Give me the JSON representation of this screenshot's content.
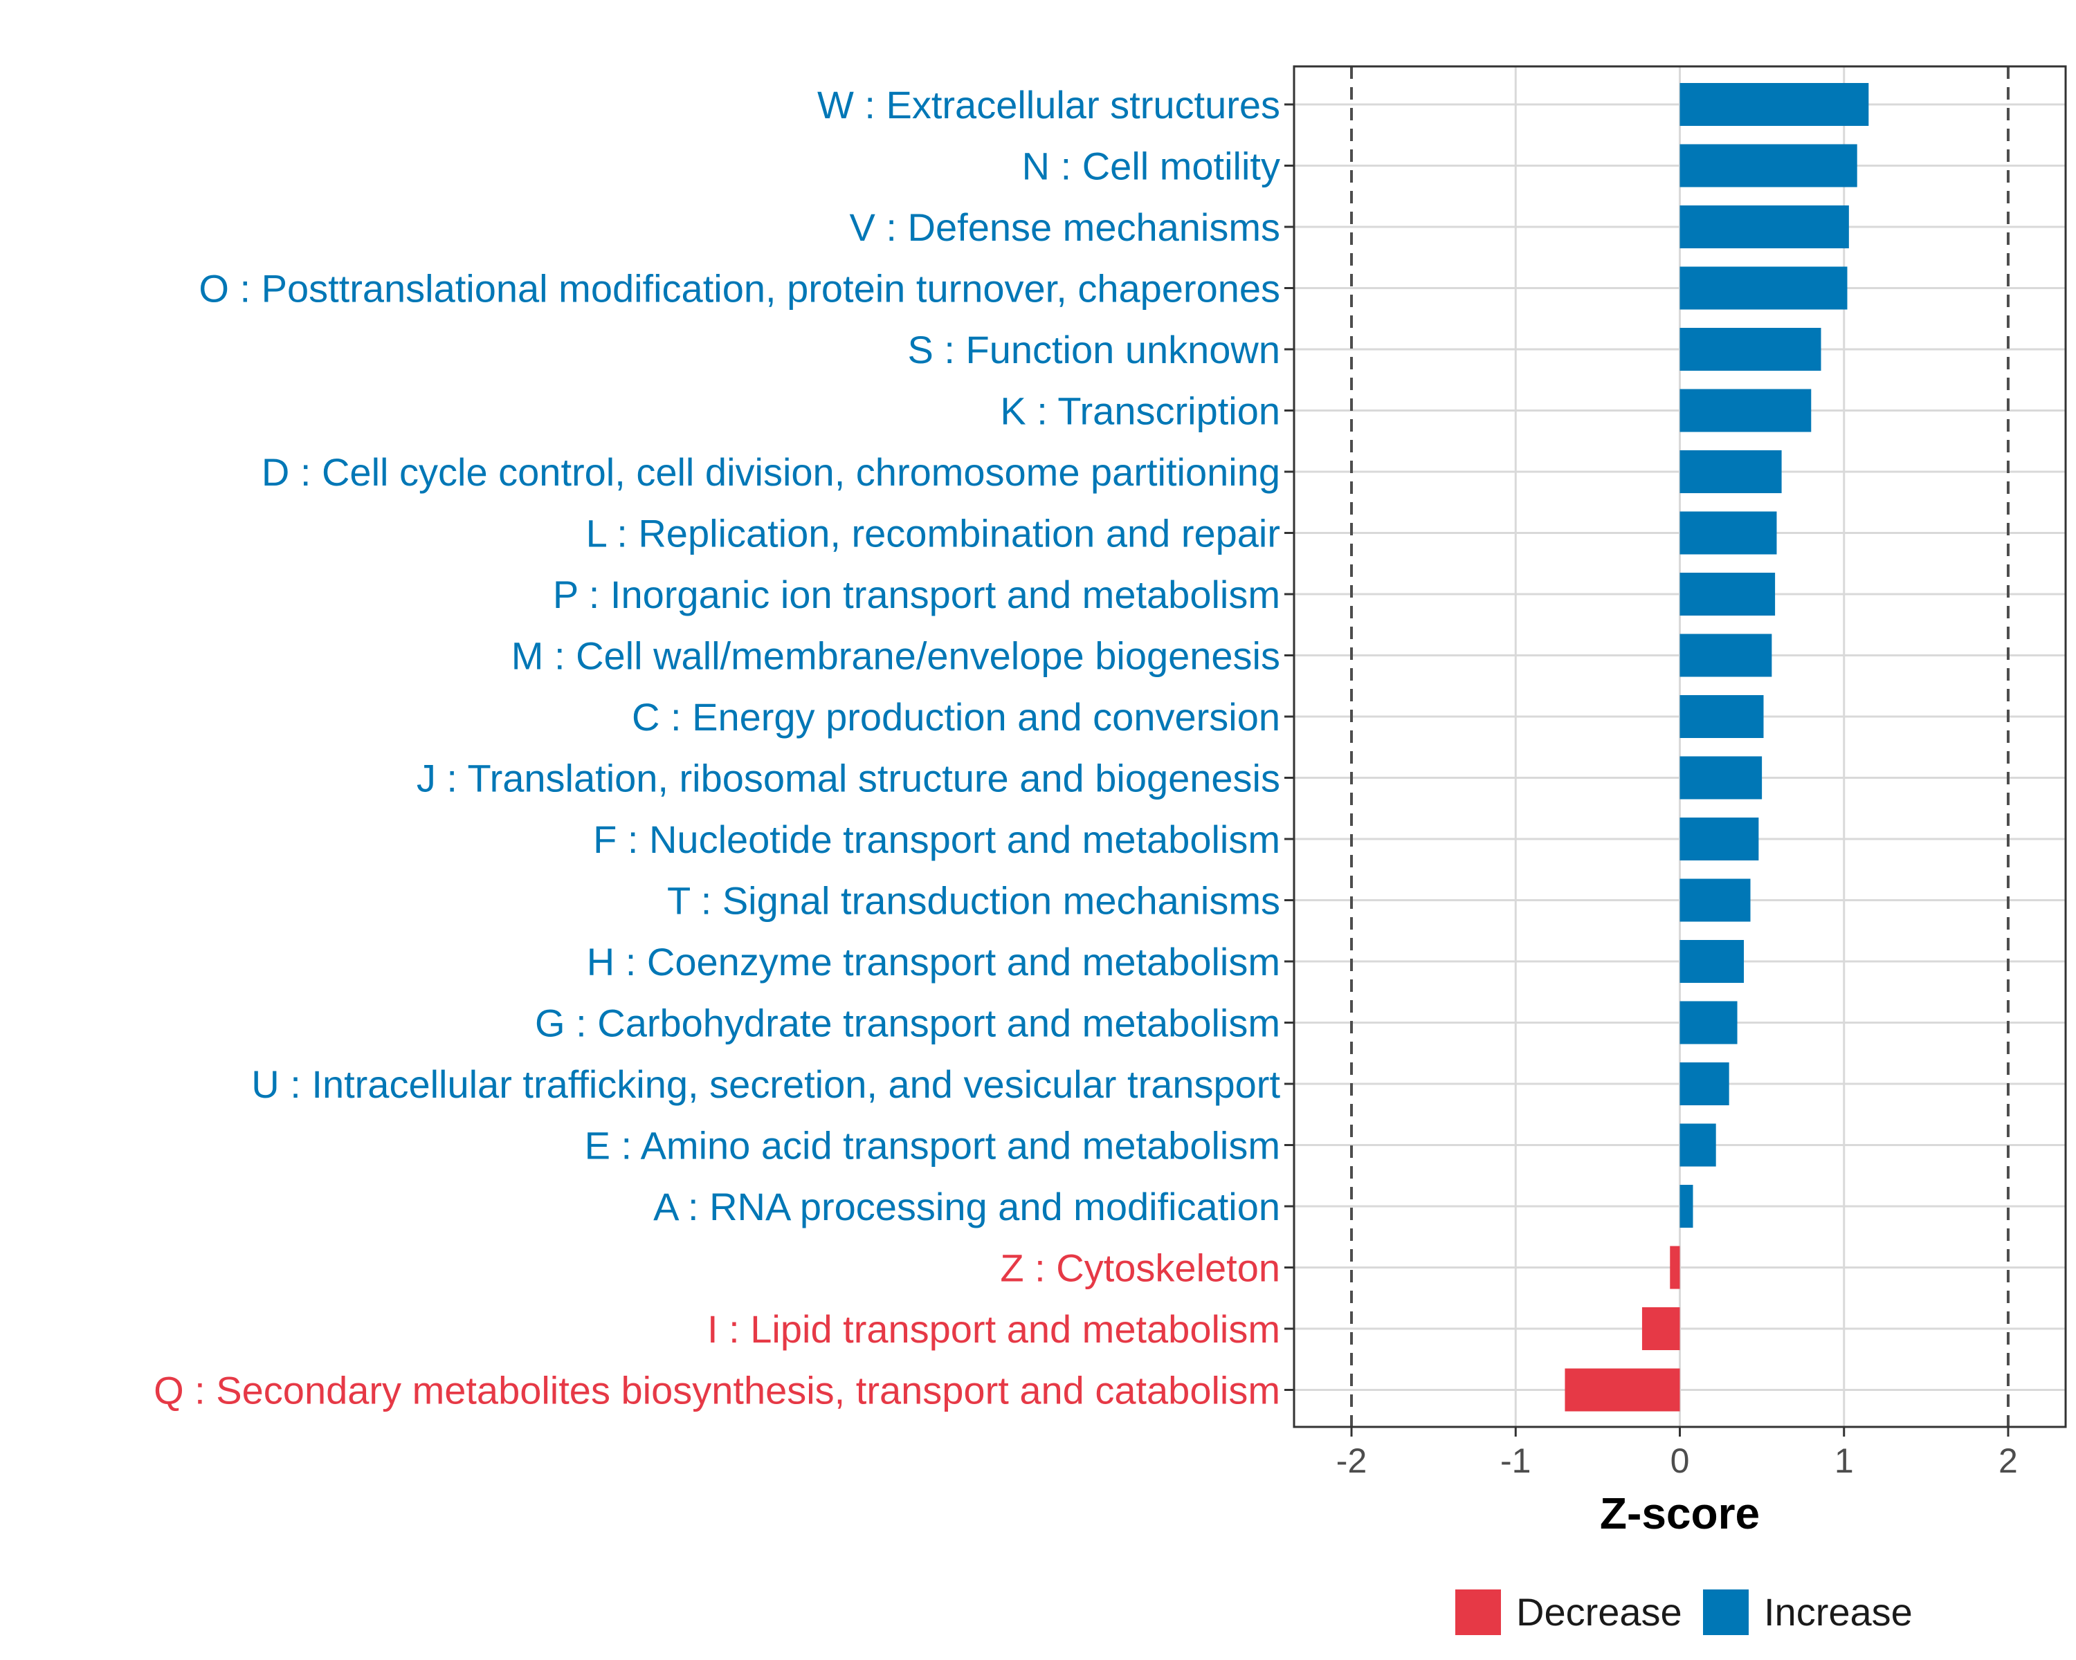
{
  "chart_data": {
    "type": "bar",
    "orientation": "horizontal",
    "xlabel": "Z-score",
    "ylabel": "",
    "xlim": [
      -2.35,
      2.35
    ],
    "x_ticks": [
      -2,
      -1,
      0,
      1,
      2
    ],
    "reference_lines": [
      -2,
      2
    ],
    "grid": true,
    "colors": {
      "Decrease": "#e63946",
      "Increase": "#0077b6"
    },
    "legend": {
      "position": "bottom",
      "entries": [
        {
          "label": "Decrease",
          "color": "#e63946"
        },
        {
          "label": "Increase",
          "color": "#0077b6"
        }
      ]
    },
    "bars": [
      {
        "label": "W : Extracellular structures",
        "value": 1.15,
        "group": "Increase"
      },
      {
        "label": "N : Cell motility",
        "value": 1.08,
        "group": "Increase"
      },
      {
        "label": "V : Defense mechanisms",
        "value": 1.03,
        "group": "Increase"
      },
      {
        "label": "O : Posttranslational modification, protein turnover, chaperones",
        "value": 1.02,
        "group": "Increase"
      },
      {
        "label": "S : Function unknown",
        "value": 0.86,
        "group": "Increase"
      },
      {
        "label": "K : Transcription",
        "value": 0.8,
        "group": "Increase"
      },
      {
        "label": "D : Cell cycle control, cell division, chromosome partitioning",
        "value": 0.62,
        "group": "Increase"
      },
      {
        "label": "L : Replication, recombination and repair",
        "value": 0.59,
        "group": "Increase"
      },
      {
        "label": "P : Inorganic ion transport and metabolism",
        "value": 0.58,
        "group": "Increase"
      },
      {
        "label": "M : Cell wall/membrane/envelope biogenesis",
        "value": 0.56,
        "group": "Increase"
      },
      {
        "label": "C : Energy production and conversion",
        "value": 0.51,
        "group": "Increase"
      },
      {
        "label": "J : Translation, ribosomal structure and biogenesis",
        "value": 0.5,
        "group": "Increase"
      },
      {
        "label": "F : Nucleotide transport and metabolism",
        "value": 0.48,
        "group": "Increase"
      },
      {
        "label": "T : Signal transduction mechanisms",
        "value": 0.43,
        "group": "Increase"
      },
      {
        "label": "H : Coenzyme transport and metabolism",
        "value": 0.39,
        "group": "Increase"
      },
      {
        "label": "G : Carbohydrate transport and metabolism",
        "value": 0.35,
        "group": "Increase"
      },
      {
        "label": "U : Intracellular trafficking, secretion, and vesicular transport",
        "value": 0.3,
        "group": "Increase"
      },
      {
        "label": "E : Amino acid transport and metabolism",
        "value": 0.22,
        "group": "Increase"
      },
      {
        "label": "A : RNA processing and modification",
        "value": 0.08,
        "group": "Increase"
      },
      {
        "label": "Z : Cytoskeleton",
        "value": -0.06,
        "group": "Decrease"
      },
      {
        "label": "I : Lipid transport and metabolism",
        "value": -0.23,
        "group": "Decrease"
      },
      {
        "label": "Q : Secondary metabolites biosynthesis, transport and catabolism",
        "value": -0.7,
        "group": "Decrease"
      }
    ]
  }
}
